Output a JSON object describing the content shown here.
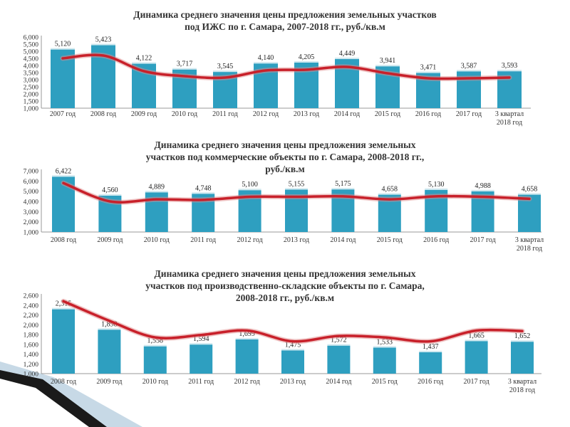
{
  "chart_data": [
    {
      "type": "bar",
      "title": "Динамика среднего значения цены предложения земельных участков под ИЖС по г. Самара, 2007-2018 гг., руб./кв.м",
      "categories": [
        "2007 год",
        "2008 год",
        "2009 год",
        "2010 год",
        "2011 год",
        "2012 год",
        "2013 год",
        "2014 год",
        "2015 год",
        "2016 год",
        "2017 год",
        "3 квартал 2018 год"
      ],
      "values": [
        5120,
        5423,
        4122,
        3717,
        3545,
        4140,
        4205,
        4449,
        3941,
        3471,
        3587,
        3593
      ],
      "value_labels": [
        "5,120",
        "5,423",
        "4,122",
        "3,717",
        "3,545",
        "4,140",
        "4,205",
        "4,449",
        "3,941",
        "3,471",
        "3,587",
        "3,593"
      ],
      "trend": [
        4500,
        4700,
        3600,
        3250,
        3150,
        3650,
        3700,
        3900,
        3450,
        3100,
        3100,
        3150
      ],
      "yticks": [
        "1,000",
        "1,500",
        "2,000",
        "2,500",
        "3,000",
        "3,500",
        "4,000",
        "4,500",
        "5,000",
        "5,500",
        "6,000"
      ],
      "ylim": [
        1000,
        6000
      ],
      "bar_color": "#2e9fc0",
      "trend_color": "#c8202a"
    },
    {
      "type": "bar",
      "title": "Динамика среднего значения цены предложения земельных участков под коммерческие объекты по г. Самара, 2008-2018 гг., руб./кв.м",
      "categories": [
        "2008 год",
        "2009 год",
        "2010 год",
        "2011 год",
        "2012 год",
        "2013 год",
        "2014 год",
        "2015 год",
        "2016 год",
        "2017 год",
        "3 квартал 2018 год"
      ],
      "values": [
        6422,
        4560,
        4889,
        4748,
        5100,
        5155,
        5175,
        4658,
        5130,
        4988,
        4658
      ],
      "value_labels": [
        "6,422",
        "4,560",
        "4,889",
        "4,748",
        "5,100",
        "5,155",
        "5,175",
        "4,658",
        "5,130",
        "4,988",
        "4,658"
      ],
      "trend": [
        5800,
        4000,
        4200,
        4150,
        4450,
        4450,
        4500,
        4200,
        4500,
        4450,
        4250
      ],
      "yticks": [
        "1,000",
        "2,000",
        "3,000",
        "4,000",
        "5,000",
        "6,000",
        "7,000"
      ],
      "ylim": [
        1000,
        7000
      ],
      "bar_color": "#2e9fc0",
      "trend_color": "#c8202a"
    },
    {
      "type": "bar",
      "title": "Динамика среднего значения цены предложения земельных участков под производственно-складские объекты по г. Самара, 2008-2018 гг., руб./кв.м",
      "categories": [
        "2008 год",
        "2009 год",
        "2010 год",
        "2011 год",
        "2012 год",
        "2013 год",
        "2014 год",
        "2015 год",
        "2016 год",
        "2017 год",
        "3 квартал 2018 год"
      ],
      "values": [
        2315,
        1898,
        1558,
        1594,
        1699,
        1475,
        1572,
        1533,
        1437,
        1665,
        1652
      ],
      "value_labels": [
        "2,315",
        "1,898",
        "1,558",
        "1,594",
        "1,699",
        "1,475",
        "1,572",
        "1,533",
        "1,437",
        "1,665",
        "1,652"
      ],
      "trend": [
        2480,
        2080,
        1740,
        1790,
        1880,
        1660,
        1770,
        1740,
        1660,
        1880,
        1870
      ],
      "yticks": [
        "1,000",
        "1,200",
        "1,400",
        "1,600",
        "1,800",
        "2,000",
        "2,200",
        "2,400",
        "2,600"
      ],
      "ylim": [
        1000,
        2600
      ],
      "bar_color": "#2e9fc0",
      "trend_color": "#c8202a"
    }
  ]
}
